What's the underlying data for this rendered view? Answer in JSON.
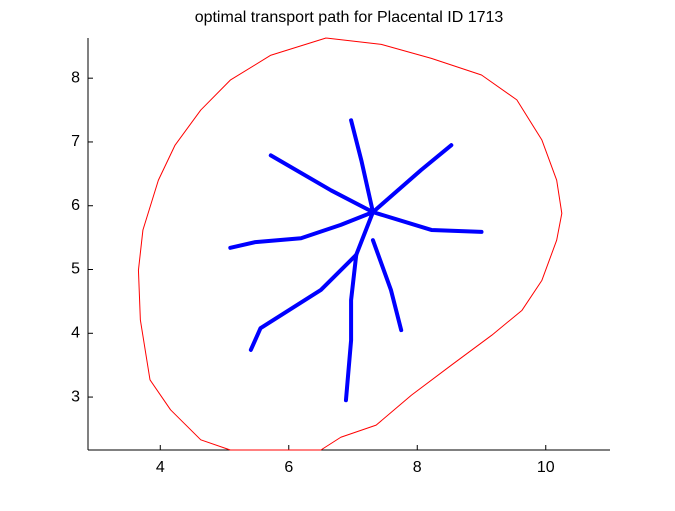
{
  "chart_data": {
    "type": "line",
    "title": "optimal transport path for Placental ID 1713",
    "xlim": [
      2.875,
      11.0
    ],
    "ylim": [
      2.17,
      8.63
    ],
    "xticks": [
      4,
      6,
      8,
      10
    ],
    "yticks": [
      3,
      4,
      5,
      6,
      7,
      8
    ],
    "series": [
      {
        "color": "#ff0000",
        "x": [
          6.58,
          7.44,
          8.22,
          9.0,
          9.55,
          9.94,
          10.17,
          10.25,
          10.17,
          9.94,
          9.63,
          9.16,
          8.53,
          7.91,
          7.36,
          6.81,
          6.5,
          5.09,
          4.63,
          4.16,
          3.84,
          3.69,
          3.66,
          3.73,
          3.97,
          4.23,
          4.63,
          5.09,
          5.72,
          6.58
        ],
        "y": [
          8.63,
          8.53,
          8.31,
          8.05,
          7.66,
          7.03,
          6.4,
          5.88,
          5.46,
          4.83,
          4.36,
          3.97,
          3.5,
          3.03,
          2.56,
          2.37,
          2.17,
          2.17,
          2.33,
          2.8,
          3.27,
          4.21,
          4.99,
          5.62,
          6.4,
          6.95,
          7.5,
          7.97,
          8.36,
          8.63
        ]
      },
      {
        "color": "#0000ff",
        "x": [
          7.31,
          7.13,
          6.97
        ],
        "y": [
          5.9,
          6.71,
          7.34
        ]
      },
      {
        "color": "#0000ff",
        "x": [
          7.31,
          8.06,
          8.53
        ],
        "y": [
          5.9,
          6.56,
          6.95
        ]
      },
      {
        "color": "#0000ff",
        "x": [
          7.31,
          6.66,
          5.72
        ],
        "y": [
          5.9,
          6.24,
          6.79
        ]
      },
      {
        "color": "#0000ff",
        "x": [
          7.31,
          6.81,
          6.19,
          5.48,
          5.09
        ],
        "y": [
          5.9,
          5.7,
          5.49,
          5.43,
          5.34
        ]
      },
      {
        "color": "#0000ff",
        "x": [
          7.31,
          8.22,
          9.0
        ],
        "y": [
          5.9,
          5.62,
          5.59
        ]
      },
      {
        "color": "#0000ff",
        "x": [
          7.31,
          7.05,
          6.5,
          5.56,
          5.41
        ],
        "y": [
          5.9,
          5.23,
          4.68,
          4.08,
          3.74
        ]
      },
      {
        "color": "#0000ff",
        "x": [
          7.05,
          6.97,
          6.97,
          6.89
        ],
        "y": [
          5.23,
          4.52,
          3.89,
          2.95
        ]
      },
      {
        "color": "#0000ff",
        "x": [
          7.31,
          7.59,
          7.75
        ],
        "y": [
          5.46,
          4.68,
          4.05
        ]
      }
    ]
  }
}
